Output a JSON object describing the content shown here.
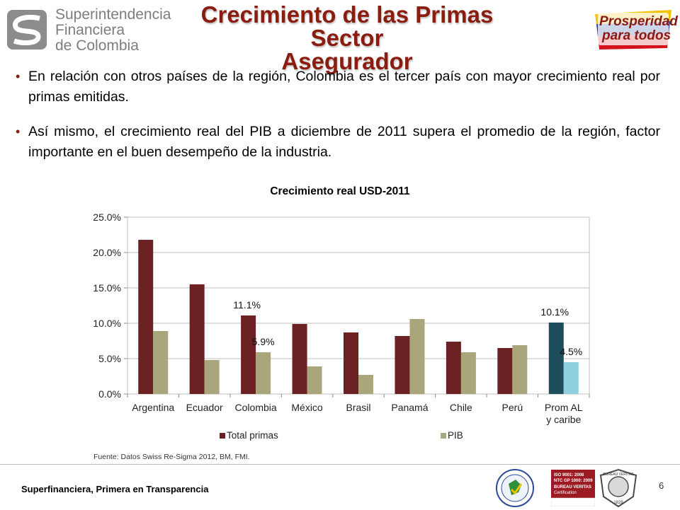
{
  "header": {
    "org_logo_lines": [
      "Superintendencia",
      "Financiera",
      "de Colombia"
    ],
    "title_line1": "Crecimiento de las Primas Sector",
    "title_line2": "Asegurador",
    "right_logo_line1": "Prosperidad",
    "right_logo_line2": "para todos"
  },
  "bullets": [
    "En relación con otros países de la región, Colombia es el tercer país con mayor crecimiento real por primas emitidas.",
    "Así mismo, el crecimiento real del PIB a diciembre de 2011 supera el promedio de la región, factor importante en el buen desempeño de la industria."
  ],
  "chart_data": {
    "type": "bar",
    "title": "Crecimiento real USD-2011",
    "xlabel": "",
    "ylabel": "",
    "categories": [
      "Argentina",
      "Ecuador",
      "Colombia",
      "México",
      "Brasil",
      "Panamá",
      "Chile",
      "Perú",
      "Prom AL y caribe"
    ],
    "series": [
      {
        "name": "Total primas",
        "values": [
          21.8,
          15.5,
          11.1,
          9.9,
          8.7,
          8.2,
          7.4,
          6.5,
          10.1
        ],
        "color": "#6b2121",
        "highlight_color": "#1e4d5c"
      },
      {
        "name": "PIB",
        "values": [
          8.9,
          4.8,
          5.9,
          3.9,
          2.7,
          10.6,
          5.9,
          6.9,
          4.5
        ],
        "color": "#a8a67a",
        "highlight_color": "#8ecfe0"
      }
    ],
    "highlight_category": "Prom AL y caribe",
    "y_ticks": [
      "0.0%",
      "5.0%",
      "10.0%",
      "15.0%",
      "20.0%",
      "25.0%"
    ],
    "ylim": [
      0,
      25
    ],
    "grid": true,
    "legend_position": "bottom",
    "data_labels": [
      {
        "category": "Colombia",
        "series": "Total primas",
        "text": "11.1%"
      },
      {
        "category": "Colombia",
        "series": "PIB",
        "text": "5.9%"
      },
      {
        "category": "Prom AL y caribe",
        "series": "Total primas",
        "text": "10.1%"
      },
      {
        "category": "Prom AL y caribe",
        "series": "PIB",
        "text": "4.5%"
      }
    ]
  },
  "source": "Fuente: Datos Swiss Re-Sigma 2012, BM, FMI.",
  "footer": {
    "text": "Superfinanciera, Primera en Transparencia",
    "page": "6",
    "badge_iso_lines": [
      "ISO 9001: 2008",
      "NTC GP 1000: 2009",
      "BUREAU VERITAS",
      "Certification"
    ],
    "badge_bv_text": "BUREAU VERITAS",
    "badge_bv_year": "1828"
  }
}
